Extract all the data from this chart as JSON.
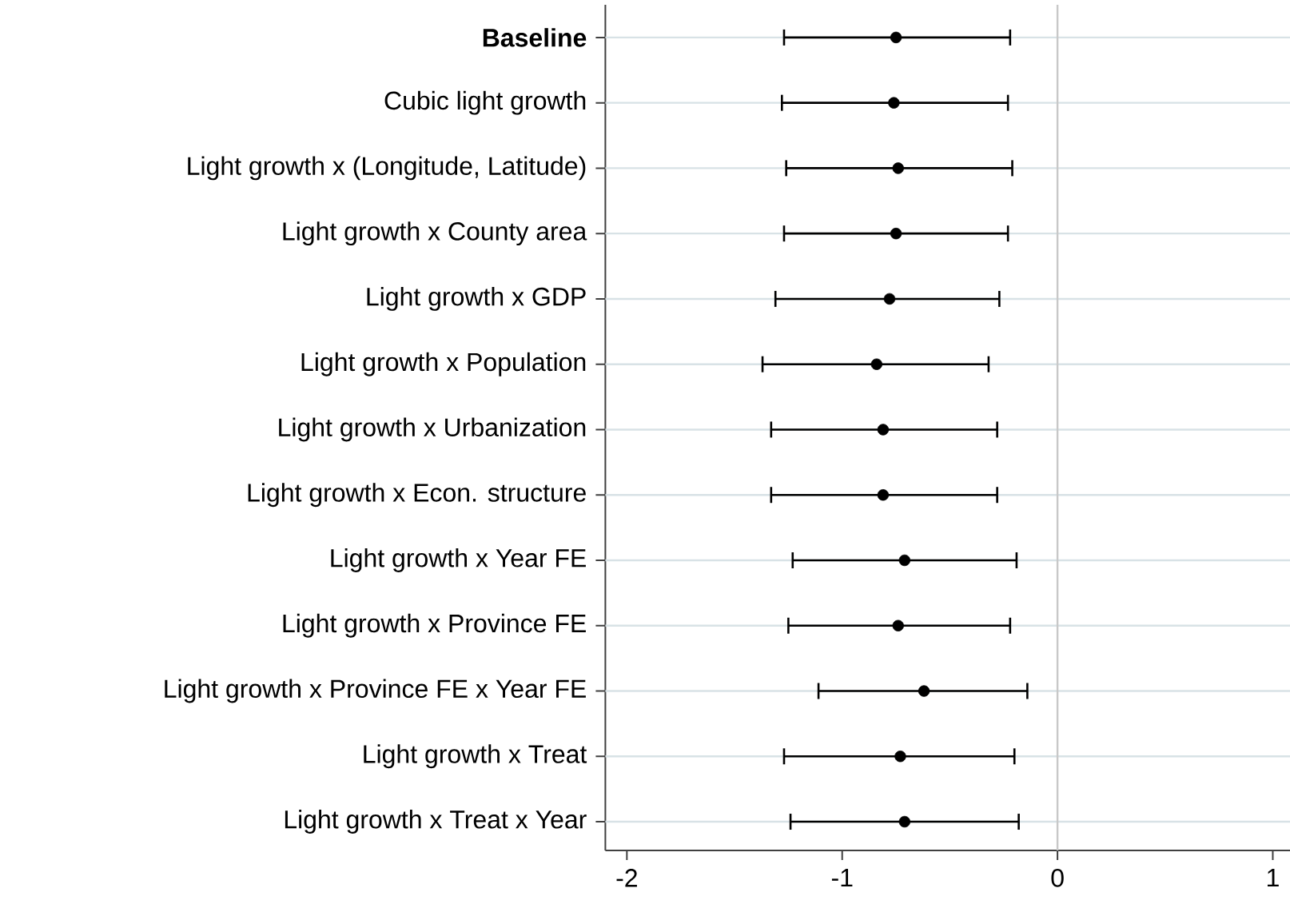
{
  "chart_data": {
    "type": "scatter",
    "orientation": "horizontal",
    "categories": [
      "**Baseline**",
      "Cubic light growth",
      "Light growth x (Longitude, Latitude)",
      "Light growth x County area",
      "Light growth x GDP",
      "Light growth x Population",
      "Light growth x Urbanization",
      "Light growth x Econ. structure",
      "Light growth x Year FE",
      "Light growth x Province FE",
      "Light growth x Province FE x Year FE",
      "Light growth x Treat",
      "Light growth x Treat x Year"
    ],
    "values": [
      -0.75,
      -0.76,
      -0.74,
      -0.75,
      -0.78,
      -0.84,
      -0.81,
      -0.81,
      -0.71,
      -0.74,
      -0.62,
      -0.73,
      -0.71
    ],
    "errors": [
      [
        -1.27,
        -0.22
      ],
      [
        -1.28,
        -0.23
      ],
      [
        -1.26,
        -0.21
      ],
      [
        -1.27,
        -0.23
      ],
      [
        -1.31,
        -0.27
      ],
      [
        -1.37,
        -0.32
      ],
      [
        -1.33,
        -0.28
      ],
      [
        -1.33,
        -0.28
      ],
      [
        -1.23,
        -0.19
      ],
      [
        -1.25,
        -0.22
      ],
      [
        -1.11,
        -0.14
      ],
      [
        -1.27,
        -0.2
      ],
      [
        -1.24,
        -0.18
      ]
    ],
    "color": "#000000",
    "marker": "circle",
    "grid": "y",
    "xlim": [
      -2.1,
      1.08
    ],
    "xticks": [
      -2,
      -1,
      0,
      1
    ],
    "ref_lines": [
      {
        "axis": "x",
        "value": 0,
        "color": "#c8c8c8"
      }
    ]
  }
}
